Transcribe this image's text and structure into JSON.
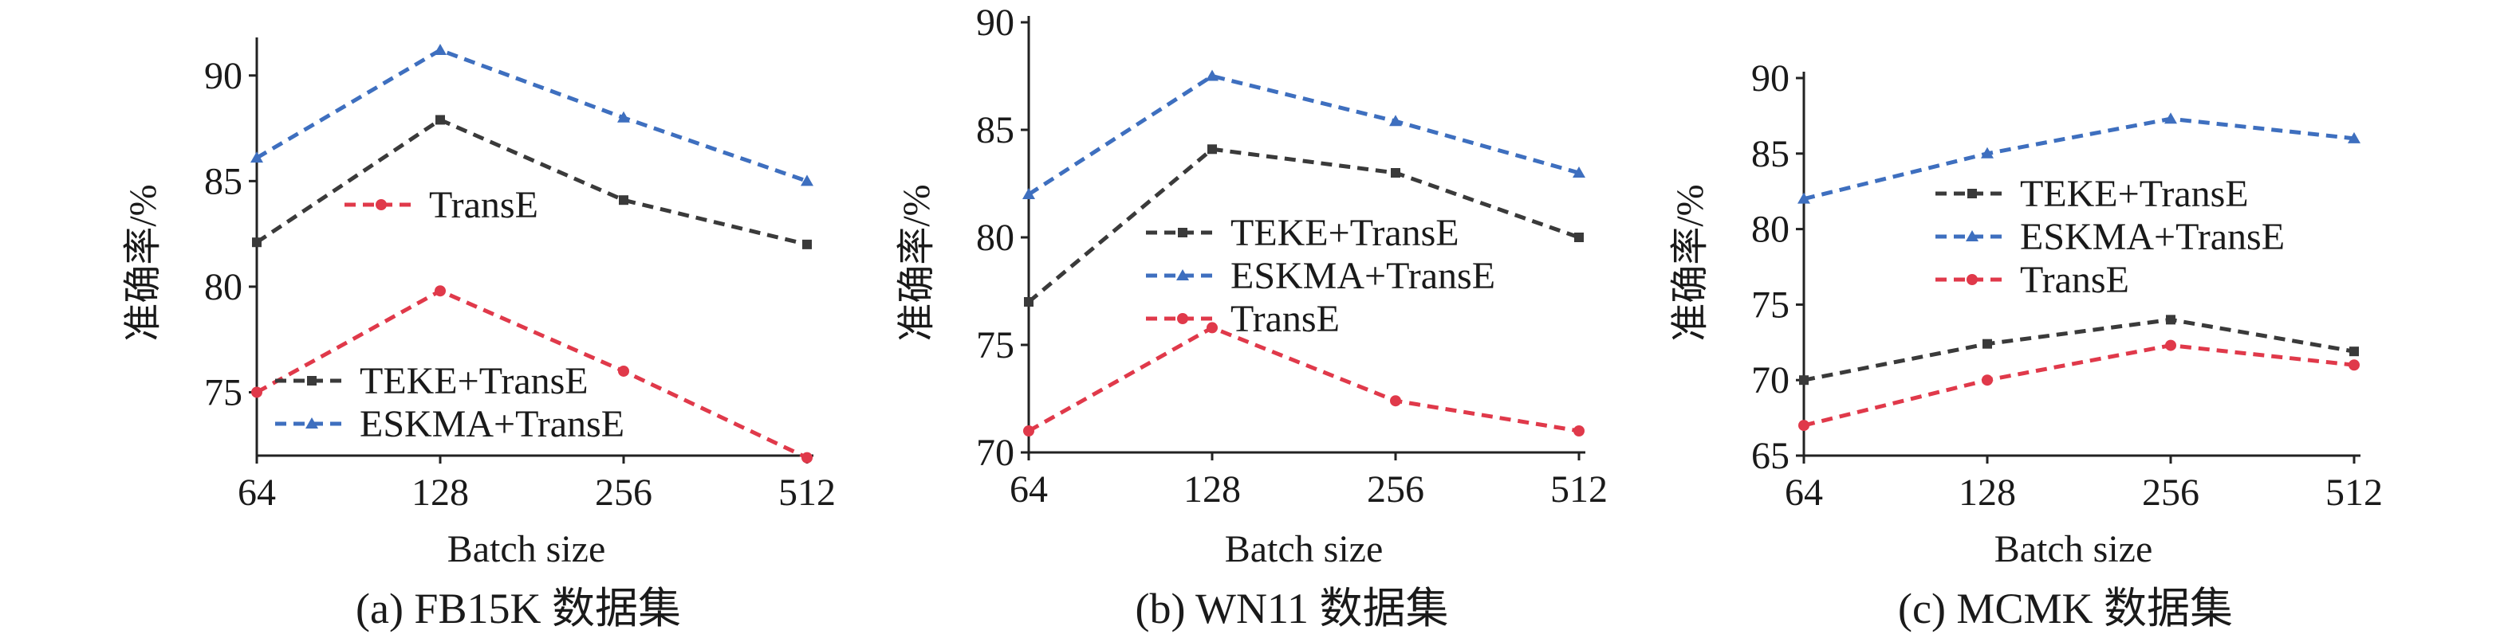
{
  "colors": {
    "teke": "#3a3a3a",
    "eskma": "#3e6fbf",
    "transe": "#e0394a",
    "axis": "#222222"
  },
  "chart_data": [
    {
      "type": "line",
      "caption": "(a) FB15K 数据集",
      "xlabel": "Batch size",
      "ylabel": "准确率/%",
      "categories": [
        "64",
        "128",
        "256",
        "512"
      ],
      "ylim": [
        72,
        91.5
      ],
      "yticks": [
        75,
        80,
        85,
        90
      ],
      "grid": false,
      "series": [
        {
          "name": "TEKE+TransE",
          "key": "teke",
          "marker": "square",
          "values": [
            82.1,
            87.9,
            84.1,
            82.0
          ]
        },
        {
          "name": "ESKMA+TransE",
          "key": "eskma",
          "marker": "triangle",
          "values": [
            86.1,
            91.2,
            88.0,
            85.0
          ]
        },
        {
          "name": "TransE",
          "key": "transe",
          "marker": "circle",
          "values": [
            75.0,
            79.8,
            76.0,
            71.9
          ]
        }
      ],
      "legend_groups": [
        [
          "transe"
        ],
        [
          "teke",
          "eskma"
        ]
      ]
    },
    {
      "type": "line",
      "caption": "(b) WN11 数据集",
      "xlabel": "Batch size",
      "ylabel": "准确率/%",
      "categories": [
        "64",
        "128",
        "256",
        "512"
      ],
      "ylim": [
        70,
        90
      ],
      "yticks": [
        70,
        75,
        80,
        85,
        90
      ],
      "grid": false,
      "series": [
        {
          "name": "TEKE+TransE",
          "key": "teke",
          "marker": "square",
          "values": [
            77.0,
            84.1,
            83.0,
            80.0
          ]
        },
        {
          "name": "ESKMA+TransE",
          "key": "eskma",
          "marker": "triangle",
          "values": [
            82.0,
            87.5,
            85.4,
            83.0
          ]
        },
        {
          "name": "TransE",
          "key": "transe",
          "marker": "circle",
          "values": [
            71.0,
            75.8,
            72.4,
            71.0
          ]
        }
      ],
      "legend_groups": [
        [
          "teke",
          "eskma",
          "transe"
        ]
      ]
    },
    {
      "type": "line",
      "caption": "(c) MCMK 数据集",
      "xlabel": "Batch size",
      "ylabel": "准确率/%",
      "categories": [
        "64",
        "128",
        "256",
        "512"
      ],
      "ylim": [
        65,
        90
      ],
      "yticks": [
        65,
        70,
        75,
        80,
        85,
        90
      ],
      "grid": false,
      "series": [
        {
          "name": "TEKE+TransE",
          "key": "teke",
          "marker": "square",
          "values": [
            70.0,
            72.4,
            74.0,
            71.9
          ]
        },
        {
          "name": "ESKMA+TransE",
          "key": "eskma",
          "marker": "triangle",
          "values": [
            82.0,
            85.0,
            87.3,
            86.0
          ]
        },
        {
          "name": "TransE",
          "key": "transe",
          "marker": "circle",
          "values": [
            67.0,
            70.0,
            72.3,
            71.0
          ]
        }
      ],
      "legend_groups": [
        [
          "teke",
          "eskma",
          "transe"
        ]
      ]
    }
  ]
}
